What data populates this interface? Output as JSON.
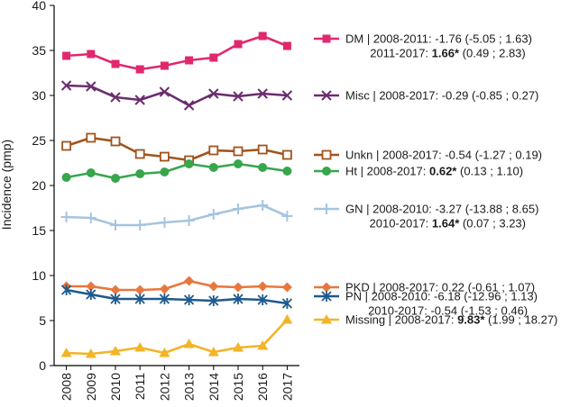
{
  "chart_data": {
    "type": "line",
    "title": "",
    "xlabel": "",
    "ylabel": "Incidence (pmp)",
    "ylim": [
      0,
      40
    ],
    "yticks": [
      "0",
      "5",
      "10",
      "15",
      "20",
      "25",
      "30",
      "35",
      "40"
    ],
    "categories": [
      "2008",
      "2009",
      "2010",
      "2011",
      "2012",
      "2013",
      "2014",
      "2015",
      "2016",
      "2017"
    ],
    "grid": false,
    "legend_position": "right",
    "series": [
      {
        "name": "DM",
        "color": "#e0286f",
        "marker": "square-filled",
        "values": [
          34.4,
          34.6,
          33.5,
          32.9,
          33.3,
          33.9,
          34.2,
          35.7,
          36.6,
          35.5
        ],
        "legend_lines": [
          {
            "pre": "DM | 2008-2011: -1.76 (-5.05 ; 1.63)",
            "bold": "",
            "post": ""
          },
          {
            "pre": "2011-2017: ",
            "bold": "1.66*",
            "post": " (0.49 ; 2.83)"
          }
        ]
      },
      {
        "name": "Misc",
        "color": "#6b2d6e",
        "marker": "x",
        "values": [
          31.1,
          31.0,
          29.8,
          29.5,
          30.4,
          28.9,
          30.2,
          29.9,
          30.2,
          30.0
        ],
        "legend_lines": [
          {
            "pre": "Misc | 2008-2017: -0.29 (-0.85 ; 0.27)",
            "bold": "",
            "post": ""
          }
        ]
      },
      {
        "name": "Unkn",
        "color": "#a0541c",
        "marker": "square-open",
        "values": [
          24.4,
          25.3,
          24.9,
          23.5,
          23.2,
          22.8,
          23.9,
          23.8,
          24.0,
          23.4
        ],
        "legend_lines": [
          {
            "pre": "Unkn | 2008-2017: -0.54 (-1.27 ; 0.19)",
            "bold": "",
            "post": ""
          }
        ]
      },
      {
        "name": "Ht",
        "color": "#37a64c",
        "marker": "circle",
        "values": [
          20.9,
          21.4,
          20.8,
          21.3,
          21.5,
          22.4,
          22.0,
          22.4,
          22.0,
          21.6
        ],
        "legend_lines": [
          {
            "pre": "Ht | 2008-2017: ",
            "bold": "0.62*",
            "post": " (0.13 ; 1.10)"
          }
        ]
      },
      {
        "name": "GN",
        "color": "#a6c4e0",
        "marker": "plus",
        "values": [
          16.5,
          16.4,
          15.6,
          15.6,
          15.9,
          16.1,
          16.8,
          17.4,
          17.8,
          16.6
        ],
        "legend_lines": [
          {
            "pre": "GN | 2008-2010: -3.27 (-13.88 ; 8.65)",
            "bold": "",
            "post": ""
          },
          {
            "pre": "2010-2017: ",
            "bold": "1.64*",
            "post": " (0.07 ; 3.23)"
          }
        ]
      },
      {
        "name": "PKD",
        "color": "#e8773e",
        "marker": "diamond",
        "values": [
          8.8,
          8.8,
          8.4,
          8.4,
          8.5,
          9.4,
          8.8,
          8.7,
          8.8,
          8.7
        ],
        "legend_lines": [
          {
            "pre": "PKD | 2008-2017: 0.22 (-0.61 ; 1.07)",
            "bold": "",
            "post": ""
          }
        ]
      },
      {
        "name": "PN",
        "color": "#1f5a8c",
        "marker": "asterisk",
        "values": [
          8.4,
          7.9,
          7.4,
          7.4,
          7.4,
          7.3,
          7.2,
          7.4,
          7.3,
          6.9
        ],
        "legend_lines": [
          {
            "pre": "PN | 2008-2010: -6.18 (-12.96 ; 1.13)",
            "bold": "",
            "post": ""
          },
          {
            "pre": "2010-2017: -0.54 (-1.53 ; 0.46)",
            "bold": "",
            "post": ""
          }
        ]
      },
      {
        "name": "Missing",
        "color": "#f2b428",
        "marker": "triangle",
        "values": [
          1.4,
          1.3,
          1.6,
          2.0,
          1.4,
          2.4,
          1.5,
          2.0,
          2.2,
          5.1
        ],
        "legend_lines": [
          {
            "pre": "Missing | 2008-2017: ",
            "bold": "9.83*",
            "post": " (1.99 ; 18.27)"
          }
        ]
      }
    ]
  }
}
